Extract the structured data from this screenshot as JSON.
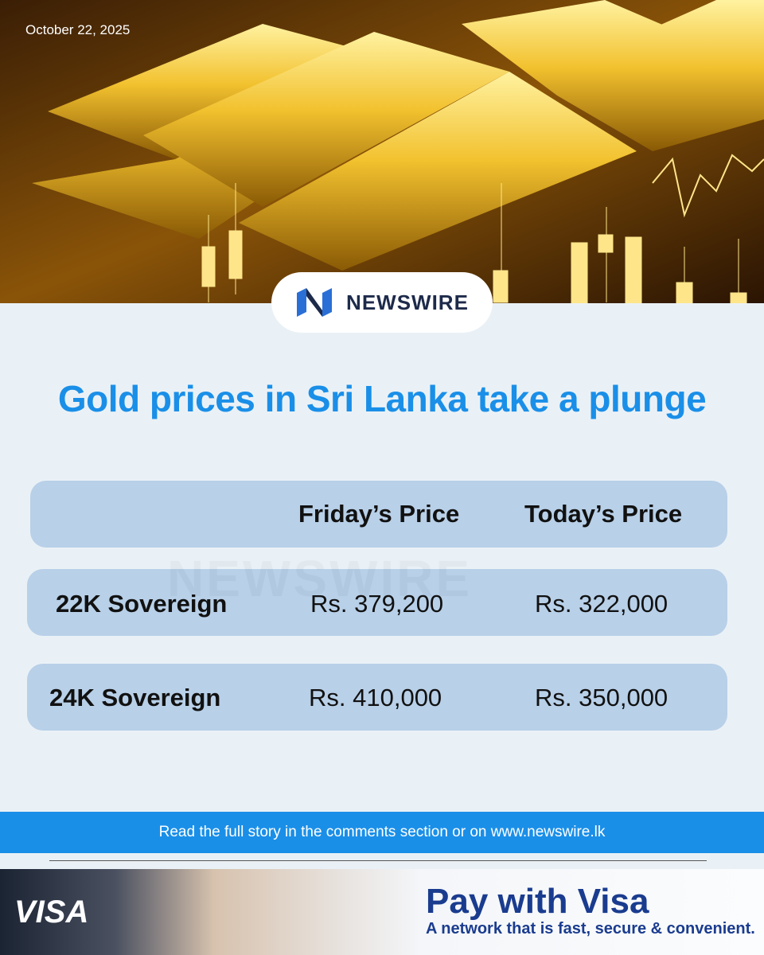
{
  "header": {
    "date": "October 22, 2025",
    "brand": "NEWSWIRE"
  },
  "headline": "Gold prices in Sri Lanka take a plunge",
  "watermark": "NEWSWIRE",
  "table": {
    "columns": [
      "Friday’s Price",
      "Today’s Price"
    ],
    "rows": [
      [
        "22K Sovereign",
        "Rs. 379,200",
        "Rs. 322,000"
      ],
      [
        "24K Sovereign",
        "Rs. 410,000",
        "Rs. 350,000"
      ]
    ]
  },
  "footer": "Read the full story in the comments section or on www.newswire.lk",
  "ad": {
    "brand": "VISA",
    "title": "Pay with Visa",
    "tagline": "A network that is fast, secure & convenient."
  }
}
